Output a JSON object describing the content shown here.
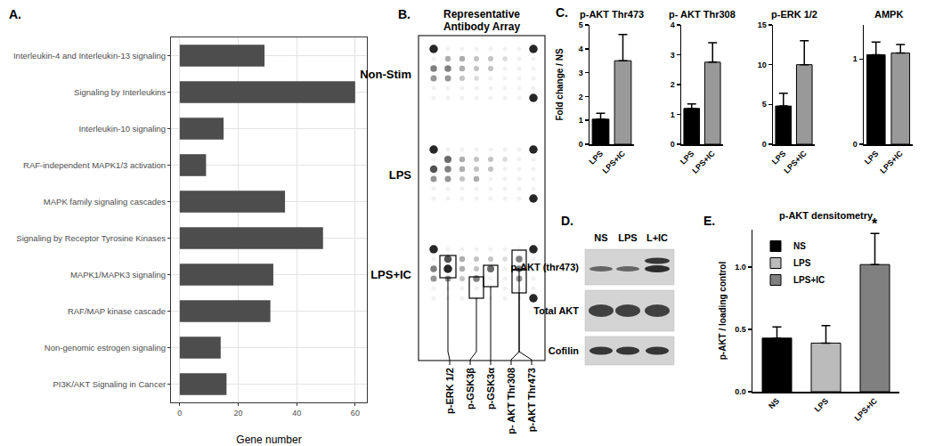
{
  "panel_labels": [
    "A.",
    "B.",
    "C.",
    "D.",
    "E."
  ],
  "chart_data": [
    {
      "type": "bar",
      "orientation": "horizontal",
      "categories": [
        "Interleukin-4 and Interleukin-13 signaling",
        "Signaling by Interleukins",
        "Interleukin-10 signaling",
        "RAF-independent MAPK1/3 activation",
        "MAPK family signaling cascades",
        "Signaling by Receptor Tyrosine Kinases",
        "MAPK1/MAPK3 signaling",
        "RAF/MAP kinase cascade",
        "Non-genomic estrogen signaling",
        "PI3K/AKT Signaling in Cancer"
      ],
      "values": [
        29,
        60,
        15,
        9,
        36,
        49,
        32,
        31,
        14,
        16
      ],
      "color": "#4d4d4d",
      "xlabel": "Gene number",
      "xlim": [
        -3,
        64
      ],
      "xticks": [
        0,
        20,
        40,
        60
      ],
      "grid": true
    },
    {
      "type": "bar",
      "title": "p-AKT Thr473",
      "ylabel": "Fold change / NS",
      "categories": [
        "LPS",
        "LPS+IC"
      ],
      "values": [
        1.05,
        3.5
      ],
      "error": [
        0.25,
        1.1
      ],
      "colors": [
        "#000000",
        "#999999"
      ],
      "ylim": [
        0,
        5
      ],
      "yticks": [
        0,
        1,
        2,
        3,
        4,
        5
      ]
    },
    {
      "type": "bar",
      "title": "p- AKT Thr308",
      "categories": [
        "LPS",
        "LPS+IC"
      ],
      "values": [
        1.2,
        2.75
      ],
      "error": [
        0.15,
        0.65
      ],
      "colors": [
        "#000000",
        "#999999"
      ],
      "ylim": [
        0,
        4
      ],
      "yticks": [
        0,
        1,
        2,
        3,
        4
      ]
    },
    {
      "type": "bar",
      "title": "p-ERK 1/2",
      "categories": [
        "LPS",
        "LPS+IC"
      ],
      "values": [
        4.8,
        10
      ],
      "error": [
        1.6,
        3
      ],
      "colors": [
        "#000000",
        "#999999"
      ],
      "ylim": [
        0,
        15
      ],
      "yticks": [
        0,
        5,
        10,
        15
      ]
    },
    {
      "type": "bar",
      "title": "AMPK",
      "categories": [
        "LPS",
        "LPS+IC"
      ],
      "values": [
        1.05,
        1.07
      ],
      "error": [
        0.15,
        0.1
      ],
      "colors": [
        "#000000",
        "#999999"
      ],
      "ylim": [
        0,
        1.4
      ],
      "yticks": [
        0,
        1
      ]
    },
    {
      "type": "bar",
      "title": "p-AKT densitometry",
      "ylabel": "p-AKT / loading control",
      "categories": [
        "NS",
        "LPS",
        "LPS+IC"
      ],
      "values": [
        0.43,
        0.39,
        1.02
      ],
      "error": [
        0.09,
        0.14,
        0.25
      ],
      "colors": [
        "#000000",
        "#bbbbbb",
        "#808080"
      ],
      "legend": "top-left",
      "ylim": [
        0,
        1.3
      ],
      "yticks": [
        {
          "value": 0,
          "label": "0.0"
        },
        {
          "value": 0.5,
          "label": "0.5"
        },
        {
          "value": 1,
          "label": "1.0"
        }
      ],
      "annotations": [
        {
          "text": "*",
          "category": "LPS+IC"
        }
      ]
    }
  ],
  "blots": {
    "B": {
      "title_lines": [
        "Representative",
        "Antibody Array"
      ],
      "row_labels": [
        "Non-Stim",
        "LPS",
        "LPS+IC"
      ],
      "spot_labels": [
        "p-ERK 1/2",
        "p-GSK3β",
        "p-GSK3α",
        "p- AKT Thr308",
        "p-AKT Thr473"
      ]
    },
    "D": {
      "column_labels": [
        "NS",
        "LPS",
        "L+IC"
      ],
      "row_labels": [
        "p-AKT (thr473)",
        "Total AKT",
        "Cofilin"
      ]
    }
  }
}
